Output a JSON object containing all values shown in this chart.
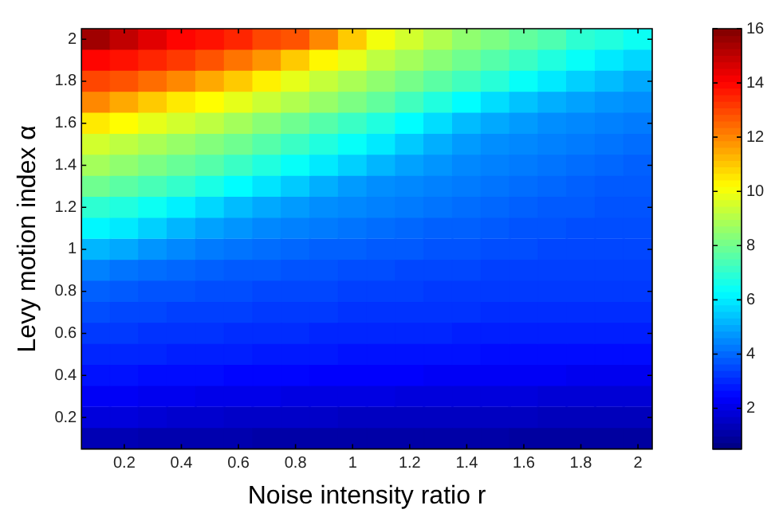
{
  "chart_data": {
    "type": "heatmap",
    "xlabel": "Noise intensity ratio r",
    "ylabel": "Levy motion index α",
    "categories": [
      null,
      "0.2",
      null,
      "0.4",
      null,
      "0.6",
      null,
      "0.8",
      null,
      "1",
      null,
      "1.2",
      null,
      "1.4",
      null,
      "1.6",
      null,
      "1.8",
      null,
      "2"
    ],
    "y_categories": [
      "2",
      null,
      "1.8",
      null,
      "1.6",
      null,
      "1.4",
      null,
      "1.2",
      null,
      "1",
      null,
      "0.8",
      null,
      "0.6",
      null,
      "0.4",
      null,
      "0.2",
      null
    ],
    "clim": [
      0.5,
      16
    ],
    "cticks": [
      2,
      4,
      6,
      8,
      10,
      12,
      14,
      16
    ],
    "cells": [
      [
        15.5,
        15,
        14.5,
        14,
        13.8,
        13.5,
        13,
        12.8,
        12,
        11,
        10,
        9.5,
        9,
        8.5,
        8.2,
        7.8,
        7.5,
        7,
        6.8,
        6.5
      ],
      [
        14,
        13.8,
        13.5,
        13.2,
        12.8,
        12.3,
        11.8,
        11,
        10.3,
        9.8,
        9.2,
        8.8,
        8.4,
        8,
        7.6,
        7.2,
        6.8,
        6.4,
        6,
        5.7
      ],
      [
        13,
        12.8,
        12.4,
        12,
        11.5,
        11,
        10.4,
        9.8,
        9.3,
        8.9,
        8.5,
        8.1,
        7.7,
        7.3,
        6.9,
        6.4,
        6,
        5.6,
        5.3,
        5
      ],
      [
        12,
        11.5,
        11,
        10.5,
        10.2,
        9.8,
        9.4,
        9,
        8.6,
        8.2,
        7.8,
        7.3,
        6.8,
        6.3,
        5.8,
        5.4,
        5.1,
        4.9,
        4.7,
        4.6
      ],
      [
        10.5,
        10.2,
        9.8,
        9.5,
        9.2,
        8.8,
        8.4,
        8,
        7.6,
        7.2,
        6.8,
        6.3,
        5.8,
        5.3,
        5,
        4.8,
        4.6,
        4.5,
        4.4,
        4.3
      ],
      [
        9.5,
        9.2,
        8.9,
        8.6,
        8.3,
        8,
        7.6,
        7.2,
        6.8,
        6.4,
        6,
        5.5,
        5.1,
        4.8,
        4.6,
        4.5,
        4.4,
        4.3,
        4.2,
        4.1
      ],
      [
        8.8,
        8.5,
        8.2,
        7.9,
        7.6,
        7.2,
        6.8,
        6.4,
        6,
        5.6,
        5.2,
        4.9,
        4.7,
        4.5,
        4.4,
        4.3,
        4.2,
        4.1,
        4,
        3.9
      ],
      [
        8,
        7.7,
        7.4,
        7.1,
        6.7,
        6.3,
        5.9,
        5.5,
        5.1,
        4.8,
        4.6,
        4.5,
        4.4,
        4.3,
        4.2,
        4.1,
        4,
        3.9,
        3.8,
        3.8
      ],
      [
        7,
        6.8,
        6.5,
        6.1,
        5.7,
        5.3,
        5,
        4.8,
        4.6,
        4.5,
        4.4,
        4.3,
        4.2,
        4.1,
        4,
        3.9,
        3.8,
        3.8,
        3.7,
        3.7
      ],
      [
        6.2,
        6,
        5.6,
        5.2,
        4.9,
        4.7,
        4.5,
        4.4,
        4.3,
        4.2,
        4.1,
        4,
        3.9,
        3.9,
        3.8,
        3.7,
        3.7,
        3.6,
        3.6,
        3.6
      ],
      [
        5.2,
        5,
        4.7,
        4.5,
        4.3,
        4.2,
        4.1,
        4,
        3.9,
        3.9,
        3.8,
        3.8,
        3.7,
        3.7,
        3.6,
        3.6,
        3.5,
        3.5,
        3.5,
        3.5
      ],
      [
        4.4,
        4.2,
        4.1,
        4,
        3.9,
        3.8,
        3.8,
        3.7,
        3.7,
        3.6,
        3.6,
        3.5,
        3.5,
        3.5,
        3.4,
        3.4,
        3.4,
        3.4,
        3.4,
        3.4
      ],
      [
        3.9,
        3.8,
        3.7,
        3.7,
        3.6,
        3.6,
        3.5,
        3.5,
        3.5,
        3.4,
        3.4,
        3.4,
        3.3,
        3.3,
        3.3,
        3.3,
        3.3,
        3.3,
        3.3,
        3.3
      ],
      [
        3.6,
        3.5,
        3.5,
        3.4,
        3.4,
        3.4,
        3.3,
        3.3,
        3.3,
        3.2,
        3.2,
        3.2,
        3.2,
        3.2,
        3.1,
        3.1,
        3.1,
        3.1,
        3.1,
        3.1
      ],
      [
        3.3,
        3.3,
        3.2,
        3.2,
        3.2,
        3.1,
        3.1,
        3.1,
        3,
        3,
        3,
        3,
        3,
        2.9,
        2.9,
        2.9,
        2.9,
        2.9,
        2.9,
        2.9
      ],
      [
        3,
        3,
        3,
        2.9,
        2.9,
        2.9,
        2.8,
        2.8,
        2.8,
        2.7,
        2.7,
        2.7,
        2.7,
        2.7,
        2.6,
        2.6,
        2.6,
        2.6,
        2.6,
        2.6
      ],
      [
        2.7,
        2.7,
        2.6,
        2.6,
        2.6,
        2.5,
        2.5,
        2.5,
        2.4,
        2.4,
        2.4,
        2.4,
        2.3,
        2.3,
        2.3,
        2.3,
        2.3,
        2.2,
        2.2,
        2.2
      ],
      [
        2.3,
        2.3,
        2.2,
        2.2,
        2.1,
        2.1,
        2.1,
        2,
        2,
        2,
        2,
        1.9,
        1.9,
        1.9,
        1.9,
        1.9,
        1.8,
        1.8,
        1.8,
        1.8
      ],
      [
        1.9,
        1.9,
        1.8,
        1.7,
        1.7,
        1.6,
        1.6,
        1.6,
        1.6,
        1.5,
        1.5,
        1.5,
        1.5,
        1.5,
        1.5,
        1.5,
        1.4,
        1.4,
        1.4,
        1.4
      ],
      [
        1.3,
        1.3,
        1.2,
        1.2,
        1.2,
        1.2,
        1.1,
        1.1,
        1.1,
        1.1,
        1.1,
        1.1,
        1.1,
        1.1,
        1.1,
        1,
        1,
        1,
        1,
        1
      ]
    ]
  }
}
